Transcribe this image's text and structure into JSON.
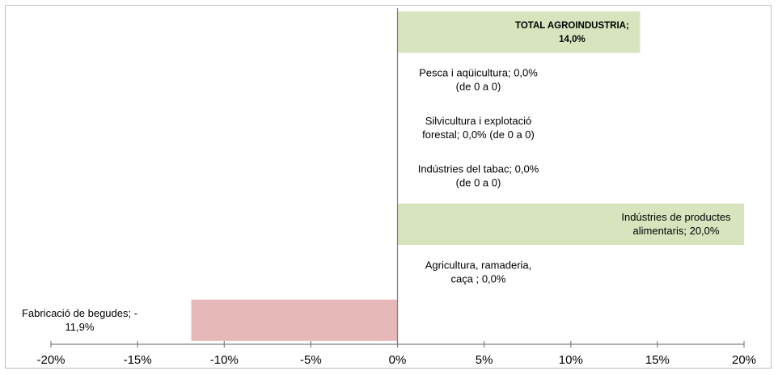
{
  "chart_data": {
    "type": "bar",
    "orientation": "horizontal",
    "xlim": [
      -0.2,
      0.2
    ],
    "x_ticks": [
      "-20%",
      "-15%",
      "-10%",
      "-5%",
      "0%",
      "5%",
      "10%",
      "15%",
      "20%"
    ],
    "x_tick_values": [
      -0.2,
      -0.15,
      -0.1,
      -0.05,
      0.0,
      0.05,
      0.1,
      0.15,
      0.2
    ],
    "grid": false,
    "legend": "none",
    "colors": {
      "positive": "#d7e4bd",
      "negative": "#e6b9b8",
      "axis": "#7f7f7f"
    },
    "bars": [
      {
        "category": "TOTAL AGROINDUSTRIA",
        "value": 0.14,
        "label_lines": [
          "TOTAL AGROINDUSTRIA;",
          "14,0%"
        ],
        "bold": true,
        "label_anchor": "inside-end"
      },
      {
        "category": "Pesca i aqüicultura",
        "value": 0.0,
        "label_lines": [
          "Pesca i aqüicultura; 0,0%",
          "(de 0 a 0)"
        ],
        "bold": false,
        "label_anchor": "right"
      },
      {
        "category": "Silvicultura i explotació forestal",
        "value": 0.0,
        "label_lines": [
          "Silvicultura i explotació",
          "forestal; 0,0%  (de 0 a 0)"
        ],
        "bold": false,
        "label_anchor": "right"
      },
      {
        "category": "Indústries del tabac",
        "value": 0.0,
        "label_lines": [
          "Indústries del tabac; 0,0%",
          "(de 0 a 0)"
        ],
        "bold": false,
        "label_anchor": "right"
      },
      {
        "category": "Indústries de productes alimentaris",
        "value": 0.2,
        "label_lines": [
          "Indústries de productes",
          "alimentaris; 20,0%"
        ],
        "bold": false,
        "label_anchor": "inside-end"
      },
      {
        "category": "Agricultura, ramaderia, caça",
        "value": 0.0,
        "label_lines": [
          "Agricultura, ramaderia,",
          "caça ; 0,0%"
        ],
        "bold": false,
        "label_anchor": "right"
      },
      {
        "category": "Fabricació de begudes",
        "value": -0.119,
        "label_lines": [
          "Fabricació de begudes; -",
          "11,9%"
        ],
        "bold": false,
        "label_anchor": "left"
      }
    ]
  }
}
